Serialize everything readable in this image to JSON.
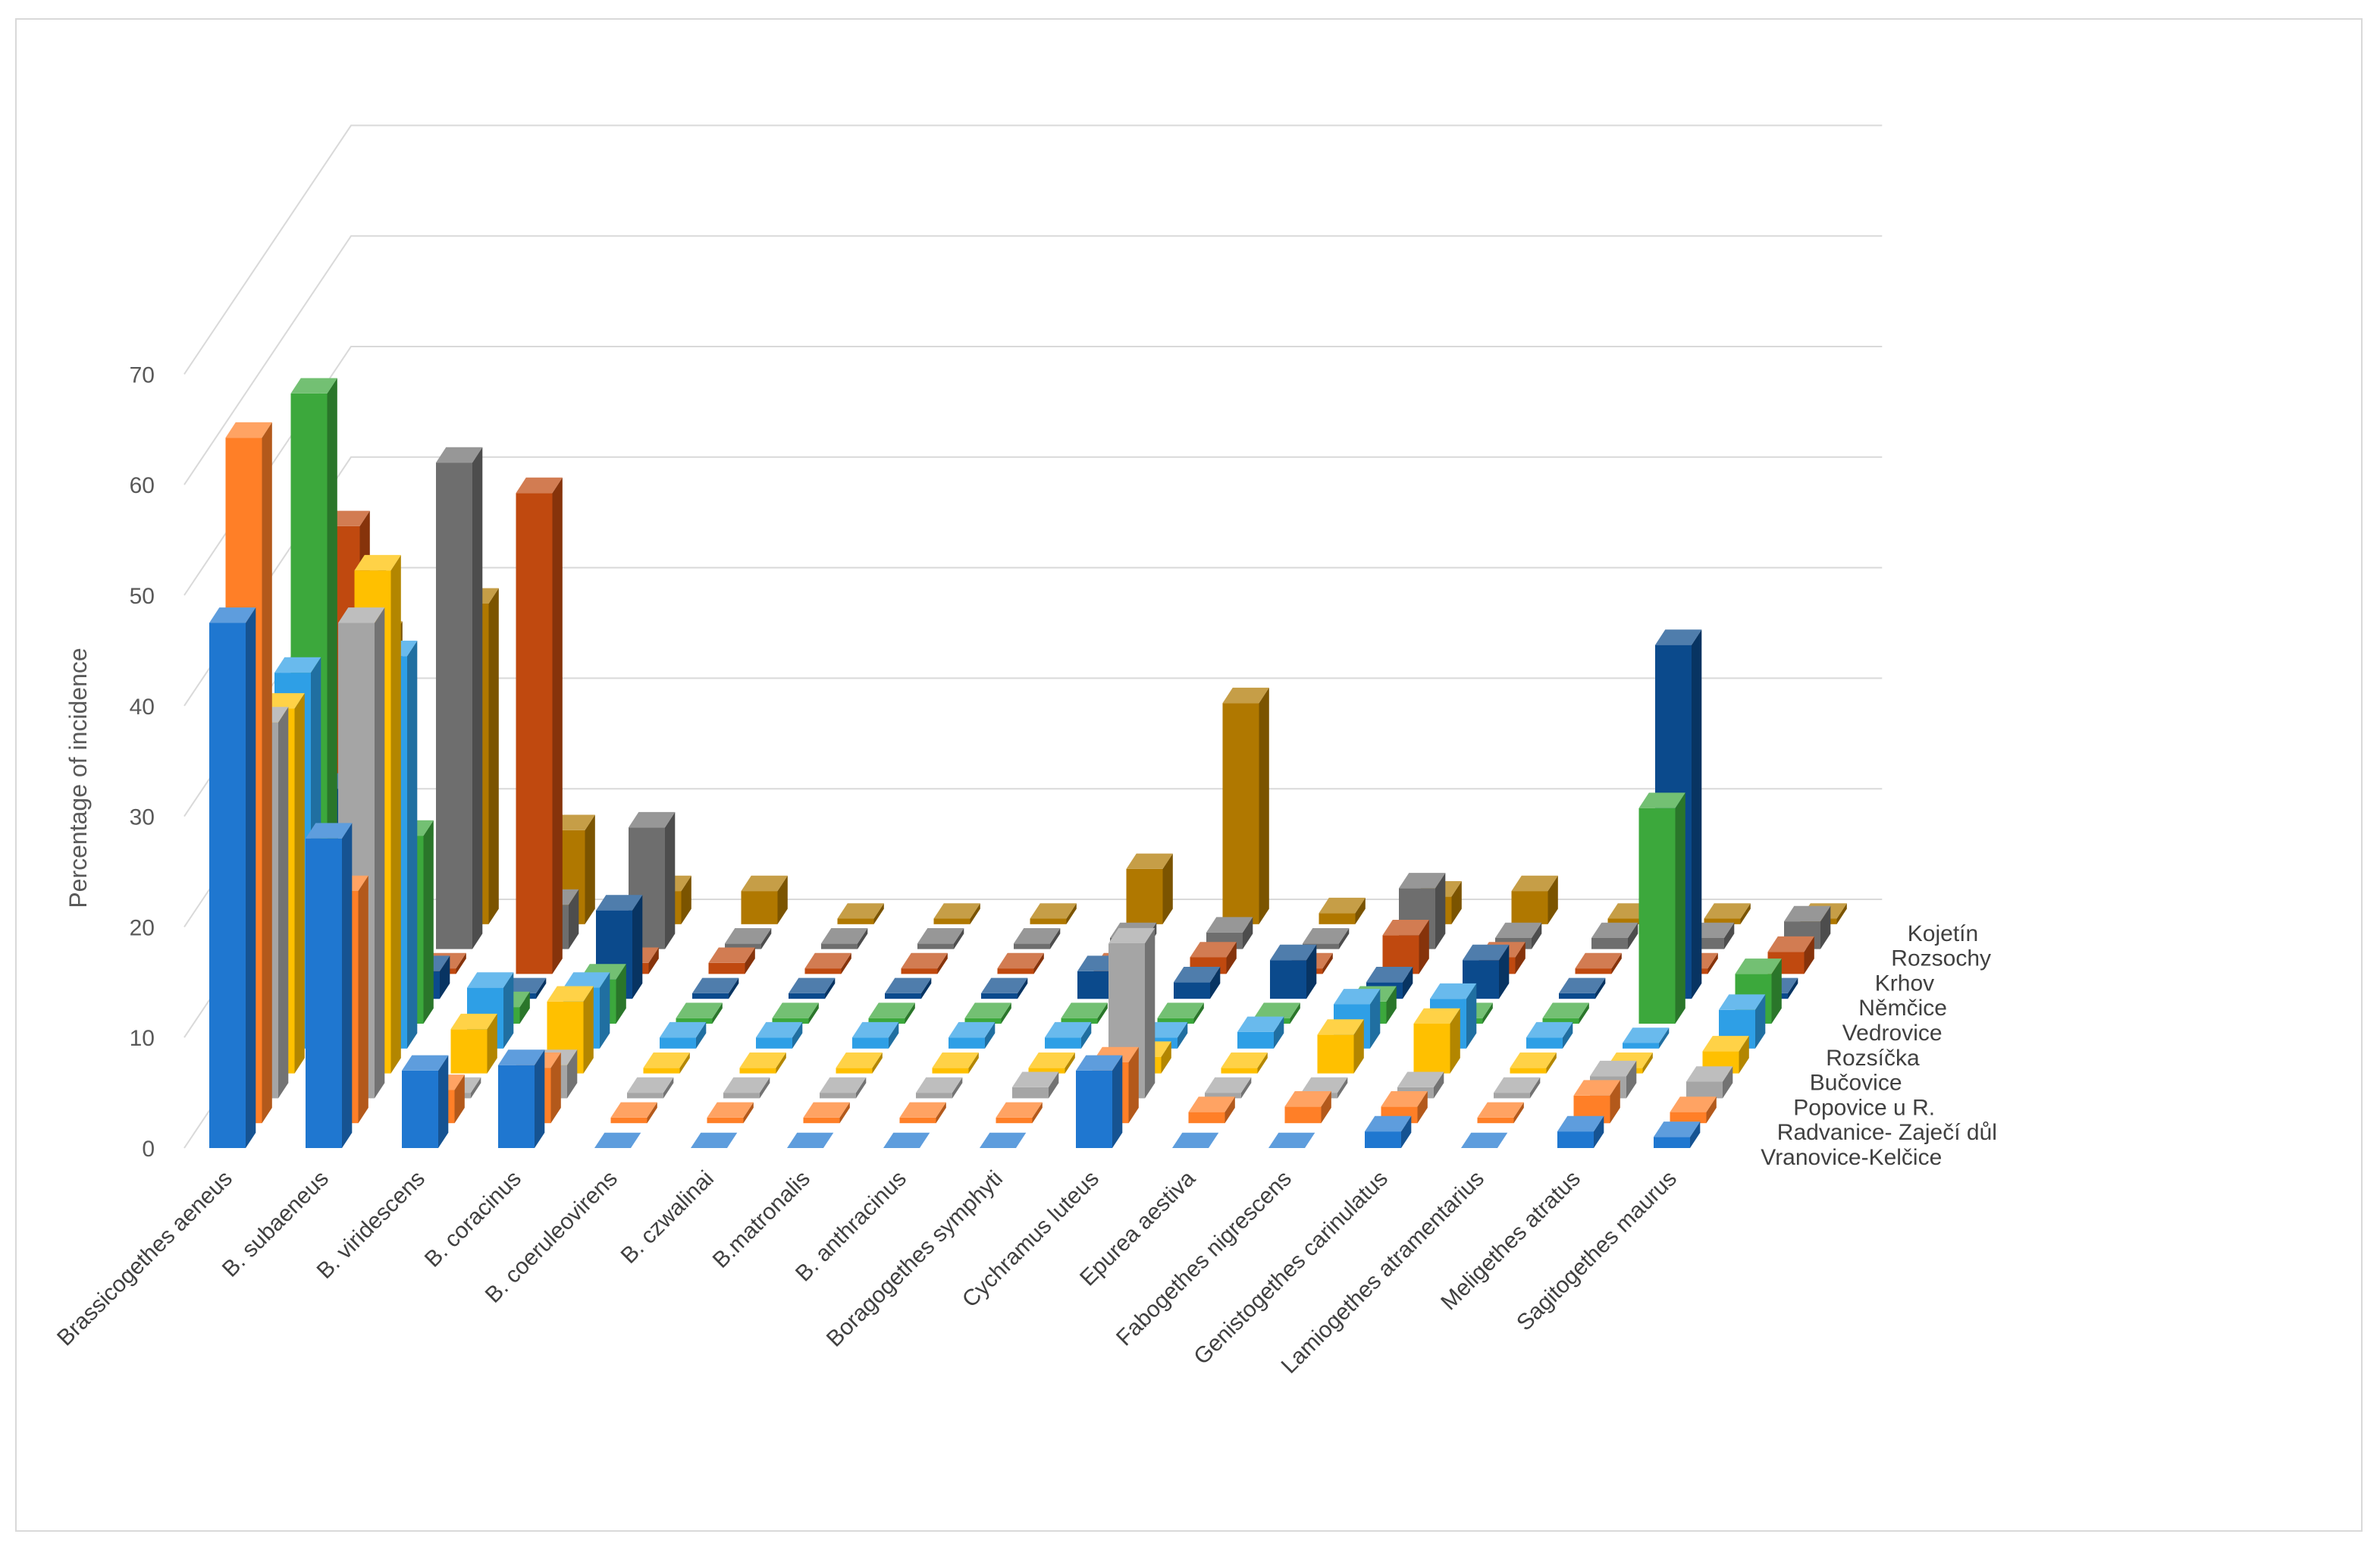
{
  "chart_data": {
    "type": "bar",
    "subtype": "3d-column",
    "title": "",
    "ylabel": "Percentage of incidence",
    "xlabel": "",
    "ylim": [
      0,
      70
    ],
    "yticks": [
      0,
      10,
      20,
      30,
      40,
      50,
      60,
      70
    ],
    "grid": true,
    "legend": "depth-axis labels at right",
    "categories": [
      "Brassicogethes aeneus",
      "B. subaeneus",
      "B. viridescens",
      "B. coracinus",
      "B. coeruleovirens",
      "B. czwalinai",
      "B.matronalis",
      "B. anthracinus",
      "Boragogethes symphyti",
      "Cychramus luteus",
      "Epurea aestiva",
      "Fabogethes nigrescens",
      "Genistogethes carinulatus",
      "Lamiogethes atramentarius",
      "Meligethes atratus",
      "Sagitogethes maurus"
    ],
    "series": [
      {
        "name": "Vranovice-Kelčice",
        "color": "#1F77D0",
        "values": [
          47.5,
          28,
          7,
          7.5,
          0,
          0,
          0,
          0,
          0,
          7,
          0,
          0,
          1.5,
          0,
          1.5,
          1
        ]
      },
      {
        "name": "Radvanice- Zaječí důl",
        "color": "#FF7F27",
        "values": [
          62,
          21,
          3,
          5,
          0.5,
          0.5,
          0.5,
          0.5,
          0.5,
          5.5,
          1,
          1.5,
          1.5,
          0.5,
          2.5,
          1
        ]
      },
      {
        "name": "Popovice u R.",
        "color": "#A5A5A5",
        "values": [
          34,
          43,
          0.5,
          3,
          0.5,
          0.5,
          0.5,
          0.5,
          1,
          14,
          0.5,
          0.5,
          1,
          0.5,
          2,
          1.5
        ]
      },
      {
        "name": "Bučovice",
        "color": "#FFC000",
        "values": [
          33,
          45.5,
          4,
          6.5,
          0.5,
          0.5,
          0.5,
          0.5,
          0.5,
          1.5,
          0.5,
          3.5,
          4.5,
          0.5,
          0.5,
          2
        ]
      },
      {
        "name": "Rozsíčka",
        "color": "#2E9FE6",
        "values": [
          34,
          35.5,
          5.5,
          5.5,
          1,
          1,
          1,
          1,
          1,
          1,
          1.5,
          4,
          4.5,
          1,
          0.5,
          3.5
        ]
      },
      {
        "name": "Vedrovice",
        "color": "#3CA83C",
        "values": [
          57,
          17,
          1.5,
          4,
          0.5,
          0.5,
          0.5,
          0.5,
          0.5,
          0.5,
          0.5,
          2,
          0.5,
          0.5,
          19.5,
          4.5
        ]
      },
      {
        "name": "Němčice",
        "color": "#0B4A8C",
        "values": [
          19,
          2.5,
          0.5,
          8,
          0.5,
          0.5,
          0.5,
          0.5,
          2.5,
          1.5,
          3.5,
          1.5,
          3.5,
          0.5,
          32,
          0.5
        ]
      },
      {
        "name": "Krhov",
        "color": "#C0490F",
        "values": [
          40.5,
          0.5,
          43.5,
          1,
          1,
          0.5,
          0.5,
          0.5,
          0.5,
          1.5,
          0.5,
          3.5,
          1.5,
          0.5,
          0.5,
          2
        ]
      },
      {
        "name": "Rozsochy",
        "color": "#6E6E6E",
        "values": [
          34,
          44,
          4,
          11,
          0.5,
          0.5,
          0.5,
          0.5,
          1,
          1.5,
          0.5,
          5.5,
          1,
          1,
          1,
          2.5
        ]
      },
      {
        "name": "Kojetín",
        "color": "#B07800",
        "values": [
          26,
          29,
          8.5,
          3,
          3,
          0.5,
          0.5,
          0.5,
          5,
          20,
          1,
          2.5,
          3,
          0.5,
          0.5,
          0.5
        ]
      }
    ]
  }
}
